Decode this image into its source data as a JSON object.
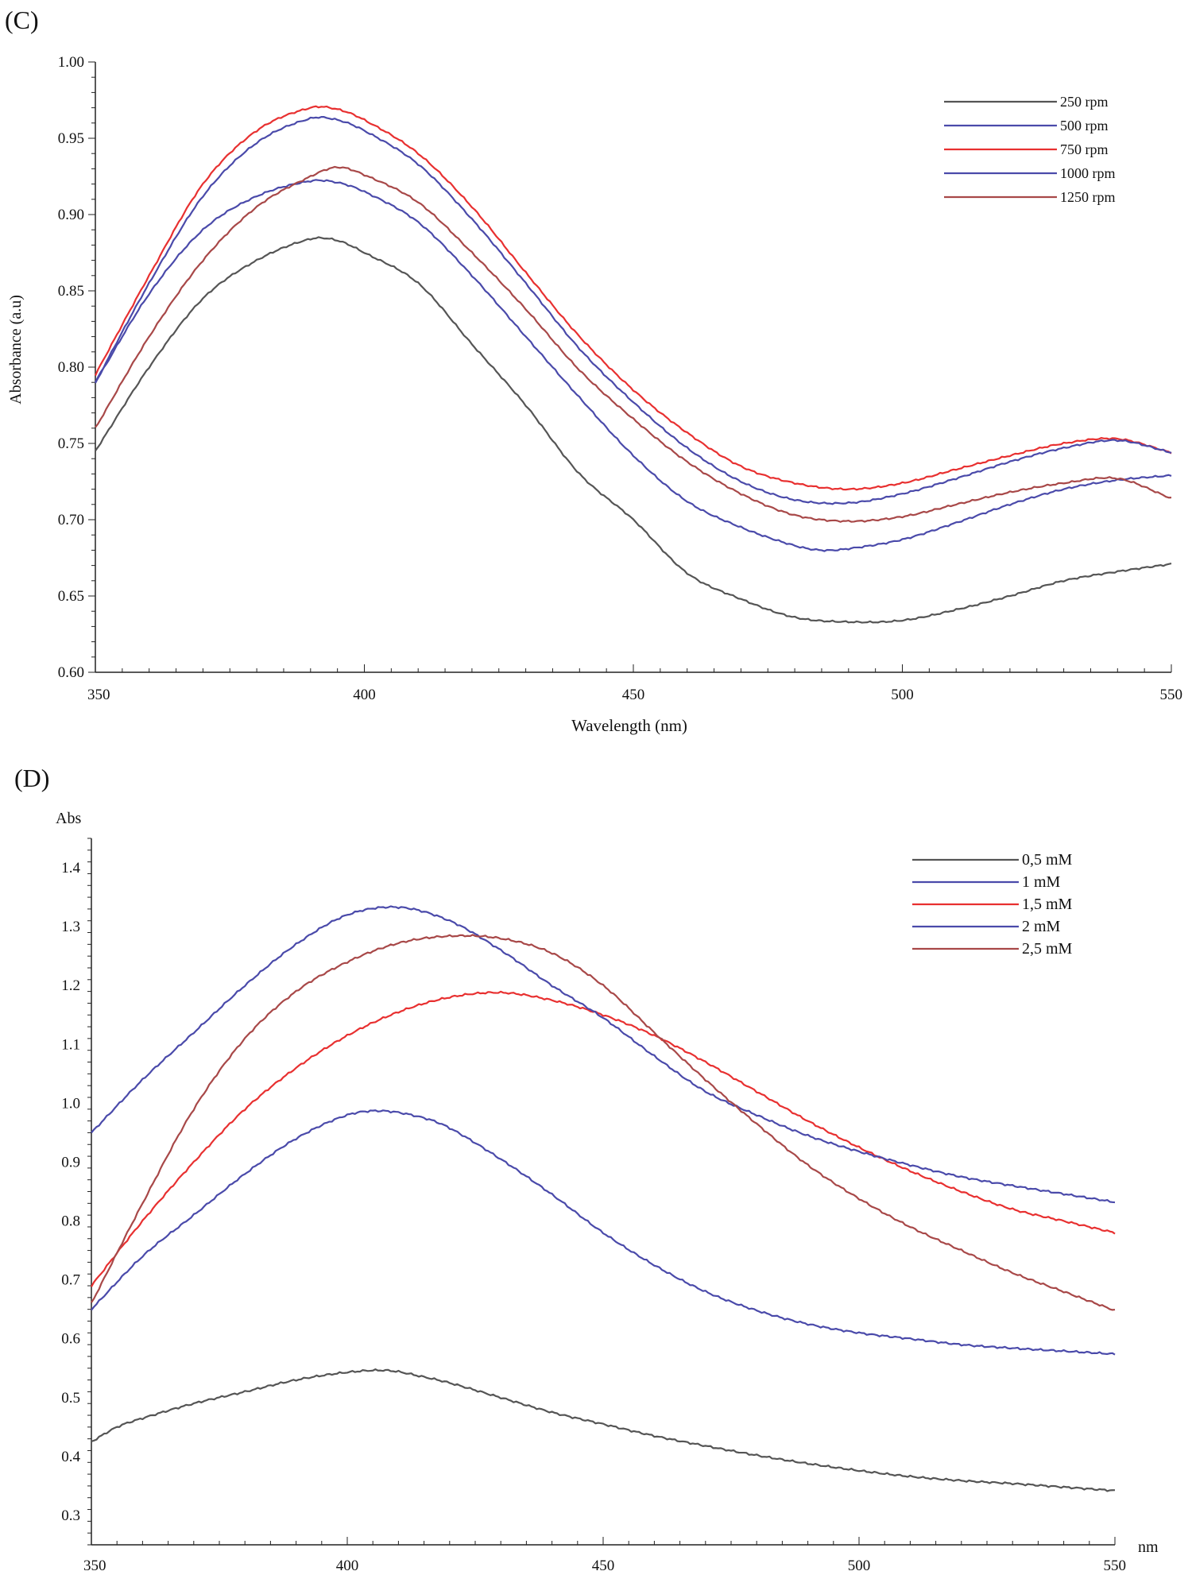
{
  "chart_data": [
    {
      "panel_label": "(C)",
      "type": "line",
      "title": "",
      "xlabel": "Wavelength (nm)",
      "ylabel": "Absorbance (a.u)",
      "xlim": [
        350,
        550
      ],
      "ylim": [
        0.6,
        1.0
      ],
      "x_major_ticks": [
        350,
        400,
        450,
        500,
        550
      ],
      "x_tick_labels": [
        "350",
        "400",
        "450",
        "500",
        "550"
      ],
      "y_major_ticks": [
        0.6,
        0.65,
        0.7,
        0.75,
        0.8,
        0.85,
        0.9,
        0.95,
        1.0
      ],
      "y_tick_labels": [
        "0.60",
        "0.65",
        "0.70",
        "0.75",
        "0.80",
        "0.85",
        "0.90",
        "0.95",
        "1.00"
      ],
      "grid": false,
      "legend_position": "top-right",
      "series": [
        {
          "name": "250 rpm",
          "color": "#555555",
          "points": [
            [
              350,
              0.745
            ],
            [
              360,
              0.8
            ],
            [
              370,
              0.845
            ],
            [
              380,
              0.87
            ],
            [
              390,
              0.884
            ],
            [
              395,
              0.883
            ],
            [
              400,
              0.875
            ],
            [
              410,
              0.855
            ],
            [
              420,
              0.815
            ],
            [
              430,
              0.775
            ],
            [
              440,
              0.73
            ],
            [
              450,
              0.7
            ],
            [
              460,
              0.665
            ],
            [
              470,
              0.648
            ],
            [
              480,
              0.636
            ],
            [
              490,
              0.633
            ],
            [
              500,
              0.634
            ],
            [
              510,
              0.641
            ],
            [
              520,
              0.65
            ],
            [
              530,
              0.66
            ],
            [
              540,
              0.666
            ],
            [
              550,
              0.671
            ]
          ]
        },
        {
          "name": "500 rpm",
          "color": "#4a4aaa",
          "points": [
            [
              350,
              0.79
            ],
            [
              360,
              0.848
            ],
            [
              370,
              0.89
            ],
            [
              380,
              0.912
            ],
            [
              390,
              0.922
            ],
            [
              395,
              0.921
            ],
            [
              400,
              0.915
            ],
            [
              410,
              0.895
            ],
            [
              420,
              0.86
            ],
            [
              430,
              0.82
            ],
            [
              440,
              0.78
            ],
            [
              450,
              0.742
            ],
            [
              460,
              0.712
            ],
            [
              470,
              0.695
            ],
            [
              480,
              0.683
            ],
            [
              485,
              0.68
            ],
            [
              490,
              0.681
            ],
            [
              500,
              0.687
            ],
            [
              510,
              0.698
            ],
            [
              520,
              0.71
            ],
            [
              530,
              0.72
            ],
            [
              540,
              0.726
            ],
            [
              550,
              0.729
            ]
          ]
        },
        {
          "name": "750 rpm",
          "color": "#e83030",
          "points": [
            [
              350,
              0.795
            ],
            [
              360,
              0.86
            ],
            [
              370,
              0.92
            ],
            [
              380,
              0.955
            ],
            [
              390,
              0.97
            ],
            [
              395,
              0.969
            ],
            [
              400,
              0.962
            ],
            [
              410,
              0.94
            ],
            [
              420,
              0.905
            ],
            [
              430,
              0.862
            ],
            [
              440,
              0.82
            ],
            [
              450,
              0.785
            ],
            [
              460,
              0.757
            ],
            [
              470,
              0.735
            ],
            [
              480,
              0.724
            ],
            [
              490,
              0.72
            ],
            [
              500,
              0.724
            ],
            [
              510,
              0.733
            ],
            [
              520,
              0.742
            ],
            [
              530,
              0.75
            ],
            [
              540,
              0.753
            ],
            [
              550,
              0.744
            ]
          ]
        },
        {
          "name": "1000 rpm",
          "color": "#4a4aaa",
          "points": [
            [
              350,
              0.79
            ],
            [
              360,
              0.855
            ],
            [
              370,
              0.912
            ],
            [
              380,
              0.947
            ],
            [
              390,
              0.963
            ],
            [
              395,
              0.962
            ],
            [
              400,
              0.955
            ],
            [
              410,
              0.933
            ],
            [
              420,
              0.897
            ],
            [
              430,
              0.855
            ],
            [
              440,
              0.812
            ],
            [
              450,
              0.777
            ],
            [
              460,
              0.747
            ],
            [
              470,
              0.725
            ],
            [
              480,
              0.713
            ],
            [
              490,
              0.711
            ],
            [
              500,
              0.717
            ],
            [
              510,
              0.727
            ],
            [
              520,
              0.738
            ],
            [
              530,
              0.747
            ],
            [
              540,
              0.752
            ],
            [
              550,
              0.744
            ]
          ]
        },
        {
          "name": "1250 rpm",
          "color": "#a84848",
          "points": [
            [
              350,
              0.76
            ],
            [
              360,
              0.82
            ],
            [
              370,
              0.87
            ],
            [
              380,
              0.905
            ],
            [
              390,
              0.925
            ],
            [
              395,
              0.931
            ],
            [
              400,
              0.926
            ],
            [
              410,
              0.908
            ],
            [
              420,
              0.875
            ],
            [
              430,
              0.838
            ],
            [
              440,
              0.798
            ],
            [
              450,
              0.766
            ],
            [
              460,
              0.738
            ],
            [
              470,
              0.717
            ],
            [
              480,
              0.703
            ],
            [
              490,
              0.699
            ],
            [
              500,
              0.702
            ],
            [
              510,
              0.71
            ],
            [
              520,
              0.718
            ],
            [
              530,
              0.724
            ],
            [
              540,
              0.727
            ],
            [
              550,
              0.714
            ]
          ]
        }
      ]
    },
    {
      "panel_label": "(D)",
      "type": "line",
      "title": "",
      "xlabel": "nm",
      "ylabel": "Abs",
      "xlim": [
        350,
        550
      ],
      "ylim": [
        0.25,
        1.45
      ],
      "x_major_ticks": [
        350,
        400,
        450,
        500,
        550
      ],
      "x_tick_labels": [
        "350",
        "400",
        "450",
        "500",
        "550"
      ],
      "y_major_ticks": [
        0.3,
        0.4,
        0.5,
        0.6,
        0.7,
        0.8,
        0.9,
        1.0,
        1.1,
        1.2,
        1.3,
        1.4
      ],
      "y_tick_labels": [
        "0.3",
        "0.4",
        "0.5",
        "0.6",
        "0.7",
        "0.8",
        "0.9",
        "1.0",
        "1.1",
        "1.2",
        "1.3",
        "1.4"
      ],
      "grid": false,
      "legend_position": "top-right",
      "series": [
        {
          "name": "0,5 mM",
          "color": "#555555",
          "points": [
            [
              350,
              0.425
            ],
            [
              355,
              0.45
            ],
            [
              360,
              0.465
            ],
            [
              370,
              0.49
            ],
            [
              380,
              0.51
            ],
            [
              390,
              0.53
            ],
            [
              400,
              0.543
            ],
            [
              408,
              0.546
            ],
            [
              415,
              0.535
            ],
            [
              420,
              0.525
            ],
            [
              430,
              0.5
            ],
            [
              440,
              0.475
            ],
            [
              450,
              0.455
            ],
            [
              460,
              0.435
            ],
            [
              470,
              0.418
            ],
            [
              480,
              0.402
            ],
            [
              490,
              0.388
            ],
            [
              500,
              0.376
            ],
            [
              510,
              0.366
            ],
            [
              520,
              0.359
            ],
            [
              530,
              0.354
            ],
            [
              540,
              0.348
            ],
            [
              550,
              0.342
            ]
          ]
        },
        {
          "name": "1 mM",
          "color": "#4a4aaa",
          "points": [
            [
              350,
              0.65
            ],
            [
              360,
              0.74
            ],
            [
              370,
              0.81
            ],
            [
              380,
              0.88
            ],
            [
              390,
              0.94
            ],
            [
              400,
              0.98
            ],
            [
              407,
              0.987
            ],
            [
              415,
              0.975
            ],
            [
              420,
              0.958
            ],
            [
              430,
              0.905
            ],
            [
              440,
              0.845
            ],
            [
              450,
              0.78
            ],
            [
              460,
              0.725
            ],
            [
              470,
              0.68
            ],
            [
              480,
              0.648
            ],
            [
              490,
              0.625
            ],
            [
              500,
              0.61
            ],
            [
              510,
              0.6
            ],
            [
              520,
              0.59
            ],
            [
              530,
              0.584
            ],
            [
              540,
              0.579
            ],
            [
              550,
              0.574
            ]
          ]
        },
        {
          "name": "1,5 mM",
          "color": "#e83030",
          "points": [
            [
              350,
              0.69
            ],
            [
              360,
              0.8
            ],
            [
              370,
              0.9
            ],
            [
              380,
              0.99
            ],
            [
              390,
              1.06
            ],
            [
              400,
              1.115
            ],
            [
              410,
              1.155
            ],
            [
              420,
              1.18
            ],
            [
              430,
              1.188
            ],
            [
              440,
              1.175
            ],
            [
              450,
              1.15
            ],
            [
              460,
              1.115
            ],
            [
              470,
              1.07
            ],
            [
              480,
              1.02
            ],
            [
              490,
              0.97
            ],
            [
              500,
              0.925
            ],
            [
              510,
              0.885
            ],
            [
              520,
              0.85
            ],
            [
              530,
              0.82
            ],
            [
              540,
              0.8
            ],
            [
              550,
              0.78
            ]
          ]
        },
        {
          "name": "2 mM",
          "color": "#4a4aaa",
          "points": [
            [
              350,
              0.95
            ],
            [
              360,
              1.04
            ],
            [
              370,
              1.12
            ],
            [
              380,
              1.2
            ],
            [
              390,
              1.27
            ],
            [
              400,
              1.32
            ],
            [
              410,
              1.333
            ],
            [
              420,
              1.31
            ],
            [
              430,
              1.26
            ],
            [
              440,
              1.2
            ],
            [
              450,
              1.145
            ],
            [
              460,
              1.08
            ],
            [
              470,
              1.02
            ],
            [
              480,
              0.98
            ],
            [
              490,
              0.945
            ],
            [
              500,
              0.918
            ],
            [
              510,
              0.895
            ],
            [
              520,
              0.875
            ],
            [
              530,
              0.86
            ],
            [
              540,
              0.846
            ],
            [
              550,
              0.832
            ]
          ]
        },
        {
          "name": "2,5 mM",
          "color": "#a84848",
          "points": [
            [
              350,
              0.66
            ],
            [
              360,
              0.83
            ],
            [
              370,
              0.99
            ],
            [
              380,
              1.11
            ],
            [
              390,
              1.19
            ],
            [
              400,
              1.24
            ],
            [
              410,
              1.272
            ],
            [
              420,
              1.284
            ],
            [
              430,
              1.28
            ],
            [
              440,
              1.255
            ],
            [
              450,
              1.2
            ],
            [
              460,
              1.12
            ],
            [
              470,
              1.04
            ],
            [
              480,
              0.965
            ],
            [
              490,
              0.895
            ],
            [
              500,
              0.838
            ],
            [
              510,
              0.79
            ],
            [
              520,
              0.75
            ],
            [
              530,
              0.712
            ],
            [
              540,
              0.68
            ],
            [
              550,
              0.648
            ]
          ]
        }
      ]
    }
  ]
}
